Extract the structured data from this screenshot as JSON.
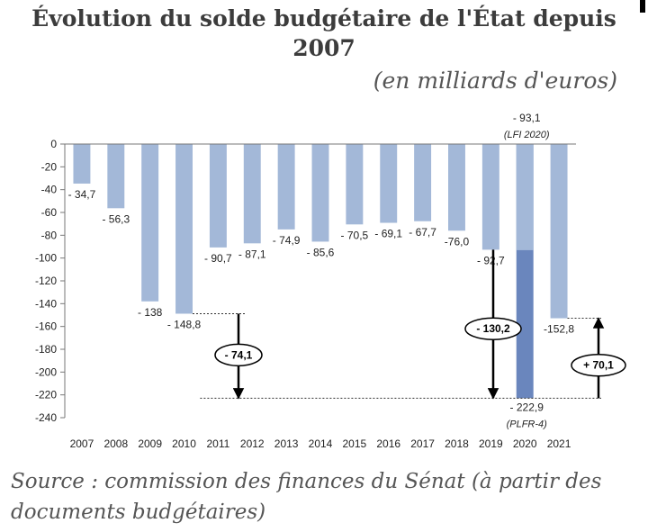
{
  "chart_data": {
    "type": "bar",
    "title": "Évolution du solde budgétaire de l'État depuis 2007",
    "subtitle": "(en milliards d'euros)",
    "source": "Source : commission des finances du Sénat (à partir des documents budgétaires)",
    "xlabel": "",
    "ylabel": "",
    "ylim": [
      -240,
      0
    ],
    "yticks": [
      0,
      -20,
      -40,
      -60,
      -80,
      -100,
      -120,
      -140,
      -160,
      -180,
      -200,
      -220,
      -240
    ],
    "categories": [
      "2007",
      "2008",
      "2009",
      "2010",
      "2011",
      "2012",
      "2013",
      "2014",
      "2015",
      "2016",
      "2017",
      "2018",
      "2019",
      "2020",
      "2021"
    ],
    "values": [
      -34.7,
      -56.3,
      -138,
      -148.8,
      -90.7,
      -87.1,
      -74.9,
      -85.6,
      -70.5,
      -69.1,
      -67.7,
      -76.0,
      -92.7,
      -222.9,
      -152.8
    ],
    "value_labels": [
      "- 34,7",
      "- 56,3",
      "- 138",
      "- 148,8",
      "- 90,7",
      "- 87,1",
      "- 74,9",
      "- 85,6",
      "- 70,5",
      "- 69,1",
      "- 67,7",
      "-76,0",
      "- 92,7",
      "- 222,9",
      "-152,8"
    ],
    "overlay_2020": {
      "value": -93.1,
      "label": "- 93,1",
      "note": "(LFI 2020)"
    },
    "final_2020_note": "(PLFR-4)",
    "annotations": [
      {
        "label": "- 74,1",
        "from": -148.8,
        "to": -222.9
      },
      {
        "label": "- 130,2",
        "from": -92.7,
        "to": -222.9
      },
      {
        "label": "+ 70,1",
        "from": -222.9,
        "to": -152.8
      }
    ],
    "colors": {
      "bar": "#a3b8d8",
      "bar_2020_final": "#6a86bd",
      "bar_2020_overlay": "#a3b8d8"
    }
  }
}
